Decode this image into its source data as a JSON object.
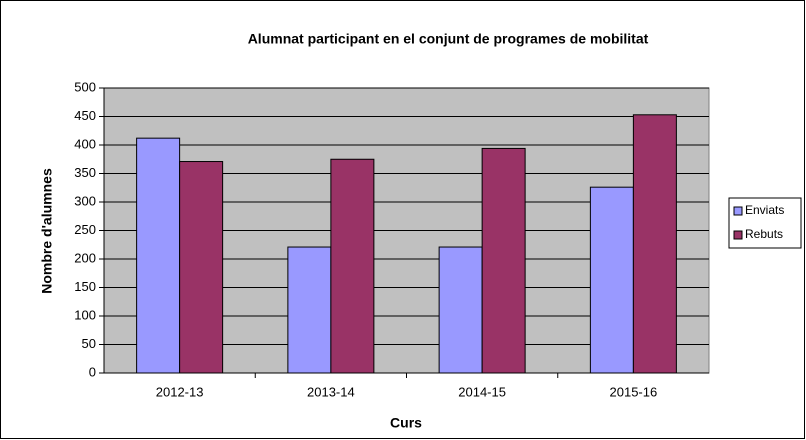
{
  "chart_data": {
    "type": "bar",
    "title": "Alumnat participant en el conjunt de programes de mobilitat",
    "x_label": "Curs",
    "y_label": "Nombre d'alumnes",
    "categories": [
      "2012-13",
      "2013-14",
      "2014-15",
      "2015-16"
    ],
    "series": [
      {
        "name": "Enviats",
        "color": "#9999ff",
        "values": [
          412,
          221,
          221,
          326
        ]
      },
      {
        "name": "Rebuts",
        "color": "#993366",
        "values": [
          371,
          375,
          394,
          453
        ]
      }
    ],
    "ylim": [
      0,
      500
    ],
    "yticks": [
      0,
      50,
      100,
      150,
      200,
      250,
      300,
      350,
      400,
      450,
      500
    ],
    "grid": true,
    "legend": "right",
    "plot_background": "#c0c0c0"
  }
}
